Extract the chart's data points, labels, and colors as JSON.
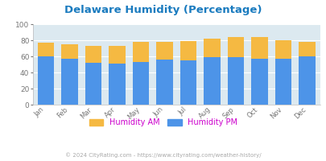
{
  "title": "Delaware Humidity (Percentage)",
  "months": [
    "Jan",
    "Feb",
    "Mar",
    "Apr",
    "May",
    "Jun",
    "Jul",
    "Aug",
    "Sep",
    "Oct",
    "Nov",
    "Dec"
  ],
  "humidity_pm": [
    60,
    57,
    52,
    51,
    53,
    56,
    55,
    59,
    59,
    57,
    57,
    60
  ],
  "humidity_am": [
    17,
    18,
    21,
    22,
    25,
    22,
    24,
    23,
    25,
    27,
    23,
    18
  ],
  "color_pm": "#4d94e8",
  "color_am": "#f5b942",
  "bg_color": "#dce9f0",
  "title_color": "#1a7bbf",
  "ylim": [
    0,
    100
  ],
  "yticks": [
    0,
    20,
    40,
    60,
    80,
    100
  ],
  "legend_am": "Humidity AM",
  "legend_pm": "Humidity PM",
  "legend_label_color": "#cc00cc",
  "footer": "© 2024 CityRating.com - https://www.cityrating.com/weather-history/",
  "footer_color": "#aaaaaa",
  "footer_link_color": "#4d94e8"
}
